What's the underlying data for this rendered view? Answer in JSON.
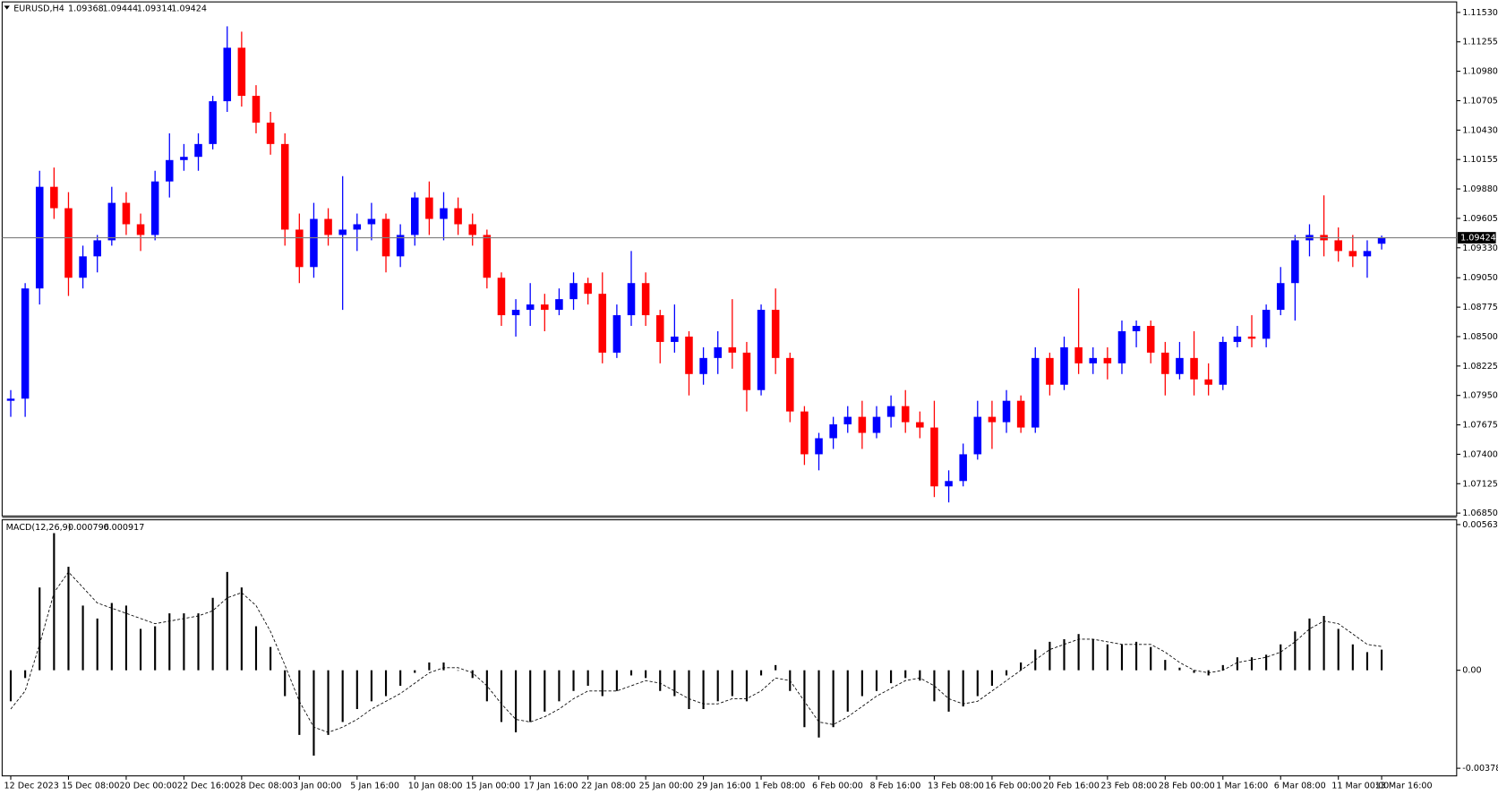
{
  "chart_data": [
    {
      "type": "candlestick",
      "title": "EURUSD,H4",
      "up_color": "#0000ff",
      "down_color": "#ff0000",
      "grid": false,
      "categories": [
        "12 Dec 2023",
        null,
        null,
        null,
        "15 Dec 08:00",
        null,
        null,
        null,
        "20 Dec 00:00",
        null,
        null,
        null,
        "22 Dec 16:00",
        null,
        null,
        null,
        "28 Dec 08:00",
        null,
        null,
        null,
        "3 Jan 00:00",
        null,
        null,
        null,
        "5 Jan 16:00",
        null,
        null,
        null,
        "10 Jan 08:00",
        null,
        null,
        null,
        "15 Jan 00:00",
        null,
        null,
        null,
        "17 Jan 16:00",
        null,
        null,
        null,
        "22 Jan 08:00",
        null,
        null,
        null,
        "25 Jan 00:00",
        null,
        null,
        null,
        "29 Jan 16:00",
        null,
        null,
        null,
        "1 Feb 08:00",
        null,
        null,
        null,
        "6 Feb 00:00",
        null,
        null,
        null,
        "8 Feb 16:00",
        null,
        null,
        null,
        "13 Feb 08:00",
        null,
        null,
        null,
        "16 Feb 00:00",
        null,
        null,
        null,
        "20 Feb 16:00",
        null,
        null,
        null,
        "23 Feb 08:00",
        null,
        null,
        null,
        "28 Feb 00:00",
        null,
        null,
        null,
        "1 Mar 16:00",
        null,
        null,
        null,
        "6 Mar 08:00",
        null,
        null,
        null,
        "11 Mar 00:00",
        null,
        null,
        "13 Mar 16:00"
      ],
      "open": [
        1.079,
        1.0792,
        1.0895,
        1.099,
        1.097,
        1.0905,
        1.0925,
        1.094,
        1.0975,
        1.0955,
        1.0945,
        1.0995,
        1.1015,
        1.1018,
        1.103,
        1.107,
        1.112,
        1.1075,
        1.105,
        1.103,
        1.095,
        1.0915,
        1.096,
        1.0945,
        1.095,
        1.0955,
        1.096,
        1.0925,
        1.0945,
        1.098,
        1.096,
        1.097,
        1.0955,
        1.0945,
        1.0905,
        1.087,
        1.0875,
        1.088,
        1.0875,
        1.0885,
        1.09,
        1.089,
        1.0835,
        1.087,
        1.09,
        1.087,
        1.0845,
        1.085,
        1.0815,
        1.083,
        1.084,
        1.0835,
        1.08,
        1.0875,
        1.083,
        1.078,
        1.074,
        1.0755,
        1.0768,
        1.0775,
        1.076,
        1.0775,
        1.0785,
        1.077,
        1.0765,
        1.071,
        1.0715,
        1.074,
        1.0775,
        1.077,
        1.079,
        1.0765,
        1.083,
        1.0805,
        1.084,
        1.0825,
        1.083,
        1.0825,
        1.0855,
        1.086,
        1.0835,
        1.0815,
        1.083,
        1.081,
        1.0805,
        1.0845,
        1.085,
        1.0848,
        1.0875,
        1.09,
        1.094,
        1.0945,
        1.094,
        1.093,
        1.0925,
        1.09368
      ],
      "high": [
        1.08,
        1.09,
        1.1005,
        1.1008,
        1.0985,
        1.0935,
        1.0945,
        1.099,
        1.0985,
        1.0965,
        1.1005,
        1.104,
        1.103,
        1.104,
        1.1075,
        1.114,
        1.1135,
        1.1085,
        1.106,
        1.104,
        1.0965,
        1.0975,
        1.097,
        1.1,
        1.0965,
        1.0975,
        1.0965,
        1.0955,
        1.0985,
        1.0995,
        1.0985,
        1.098,
        1.0965,
        1.095,
        1.091,
        1.0885,
        1.09,
        1.089,
        1.0895,
        1.091,
        1.0905,
        1.091,
        1.088,
        1.093,
        1.091,
        1.0875,
        1.088,
        1.0855,
        1.084,
        1.0855,
        1.0885,
        1.0845,
        1.088,
        1.0895,
        1.0835,
        1.0785,
        1.076,
        1.0775,
        1.0785,
        1.079,
        1.0785,
        1.0795,
        1.08,
        1.078,
        1.079,
        1.0725,
        1.075,
        1.079,
        1.079,
        1.08,
        1.0795,
        1.084,
        1.0835,
        1.085,
        1.0895,
        1.084,
        1.084,
        1.0865,
        1.0865,
        1.0865,
        1.0845,
        1.0845,
        1.0855,
        1.0825,
        1.085,
        1.086,
        1.087,
        1.088,
        1.0915,
        1.0945,
        1.0955,
        1.0982,
        1.0952,
        1.0945,
        1.094,
        1.09444
      ],
      "low": [
        1.0775,
        1.0775,
        1.088,
        1.096,
        1.0888,
        1.0895,
        1.091,
        1.0935,
        1.0945,
        1.093,
        1.094,
        1.098,
        1.1005,
        1.1005,
        1.1025,
        1.106,
        1.1065,
        1.104,
        1.102,
        1.0935,
        1.09,
        1.0905,
        1.0935,
        1.0875,
        1.093,
        1.094,
        1.091,
        1.0915,
        1.0935,
        1.0945,
        1.094,
        1.0945,
        1.0935,
        1.0895,
        1.086,
        1.085,
        1.086,
        1.0855,
        1.087,
        1.0875,
        1.088,
        1.0825,
        1.083,
        1.086,
        1.086,
        1.0825,
        1.0835,
        1.0795,
        1.0805,
        1.0815,
        1.082,
        1.078,
        1.0795,
        1.0815,
        1.077,
        1.073,
        1.0725,
        1.0745,
        1.076,
        1.0745,
        1.0755,
        1.0765,
        1.076,
        1.0755,
        1.07,
        1.0695,
        1.071,
        1.0735,
        1.0745,
        1.076,
        1.076,
        1.076,
        1.0795,
        1.08,
        1.0815,
        1.0815,
        1.081,
        1.0815,
        1.084,
        1.0825,
        1.0795,
        1.081,
        1.0795,
        1.0795,
        1.08,
        1.084,
        1.084,
        1.084,
        1.087,
        1.0865,
        1.0925,
        1.0925,
        1.092,
        1.0915,
        1.0905,
        1.09314
      ],
      "close": [
        1.0792,
        1.0895,
        1.099,
        1.097,
        1.0905,
        1.0925,
        1.094,
        1.0975,
        1.0955,
        1.0945,
        1.0995,
        1.1015,
        1.1018,
        1.103,
        1.107,
        1.112,
        1.1075,
        1.105,
        1.103,
        1.095,
        1.0915,
        1.096,
        1.0945,
        1.095,
        1.0955,
        1.096,
        1.0925,
        1.0945,
        1.098,
        1.096,
        1.097,
        1.0955,
        1.0945,
        1.0905,
        1.087,
        1.0875,
        1.088,
        1.0875,
        1.0885,
        1.09,
        1.089,
        1.0835,
        1.087,
        1.09,
        1.087,
        1.0845,
        1.085,
        1.0815,
        1.083,
        1.084,
        1.0835,
        1.08,
        1.0875,
        1.083,
        1.078,
        1.074,
        1.0755,
        1.0768,
        1.0775,
        1.076,
        1.0775,
        1.0785,
        1.077,
        1.0765,
        1.071,
        1.0715,
        1.074,
        1.0775,
        1.077,
        1.079,
        1.0765,
        1.083,
        1.0805,
        1.084,
        1.0825,
        1.083,
        1.0825,
        1.0855,
        1.086,
        1.0835,
        1.0815,
        1.083,
        1.081,
        1.0805,
        1.0845,
        1.085,
        1.0848,
        1.0875,
        1.09,
        1.094,
        1.0945,
        1.094,
        1.093,
        1.0925,
        1.093,
        1.09424
      ],
      "ylim": [
        1.0685,
        1.1153
      ],
      "yticks": [
        {
          "value": 1.1153,
          "label": "1.11530"
        },
        1.11255,
        {
          "value": 1.1098,
          "label": "1.10980"
        },
        1.10705,
        {
          "value": 1.1043,
          "label": "1.10430"
        },
        1.10155,
        {
          "value": 1.0988,
          "label": "1.09880"
        },
        1.09605,
        {
          "value": 1.0933,
          "label": "1.09330"
        },
        {
          "value": 1.0905,
          "label": "1.09050"
        },
        1.08775,
        {
          "value": 1.085,
          "label": "1.08500"
        },
        1.08225,
        {
          "value": 1.0795,
          "label": "1.07950"
        },
        1.07675,
        {
          "value": 1.074,
          "label": "1.07400"
        },
        1.07125,
        {
          "value": 1.0685,
          "label": "1.06850"
        }
      ]
    },
    {
      "type": "macd",
      "title": "MACD(12,26,9)",
      "grid": false,
      "series": [
        {
          "name": "MACD",
          "color": "#000000",
          "values": [
            -0.0012,
            -0.0003,
            0.0032,
            0.0053,
            0.004,
            0.0025,
            0.002,
            0.0026,
            0.0025,
            0.0016,
            0.0017,
            0.0022,
            0.0022,
            0.0022,
            0.0028,
            0.0038,
            0.0032,
            0.0017,
            0.0009,
            -0.001,
            -0.0025,
            -0.0033,
            -0.0025,
            -0.002,
            -0.0015,
            -0.0012,
            -0.001,
            -0.0006,
            -0.0001,
            0.0003,
            0.0003,
            0,
            -0.0003,
            -0.0012,
            -0.002,
            -0.0024,
            -0.002,
            -0.0016,
            -0.0012,
            -0.0008,
            -0.0006,
            -0.001,
            -0.0008,
            -0.0002,
            -0.0003,
            -0.0008,
            -0.001,
            -0.0015,
            -0.0015,
            -0.0012,
            -0.001,
            -0.0012,
            -0.0002,
            0.0002,
            -0.0008,
            -0.0022,
            -0.0026,
            -0.0022,
            -0.0016,
            -0.001,
            -0.0008,
            -0.0005,
            -0.0003,
            -0.0004,
            -0.0012,
            -0.0016,
            -0.0014,
            -0.001,
            -0.0006,
            -0.0002,
            0.0003,
            0.0008,
            0.0011,
            0.0012,
            0.0014,
            0.0012,
            0.001,
            0.001,
            0.0011,
            0.0009,
            0.0004,
            0.0001,
            -0.0001,
            -0.0002,
            0.0002,
            0.0005,
            0.0005,
            0.0006,
            0.001,
            0.0015,
            0.002,
            0.0021,
            0.0016,
            0.001,
            0.0007,
            0.000796
          ]
        },
        {
          "name": "Signal",
          "color": "#000000",
          "values": [
            -0.0015,
            -0.0008,
            0.001,
            0.003,
            0.0038,
            0.0032,
            0.0026,
            0.0024,
            0.0022,
            0.002,
            0.0018,
            0.0019,
            0.002,
            0.0021,
            0.0023,
            0.0028,
            0.003,
            0.0025,
            0.0015,
            0.0002,
            -0.0012,
            -0.0022,
            -0.0024,
            -0.0022,
            -0.0019,
            -0.0015,
            -0.0012,
            -0.0009,
            -0.0005,
            -0.0001,
            0.0001,
            0.0001,
            -0.0001,
            -0.0006,
            -0.0013,
            -0.0019,
            -0.002,
            -0.0018,
            -0.0015,
            -0.0011,
            -0.0008,
            -0.0008,
            -0.0008,
            -0.0006,
            -0.0004,
            -0.0005,
            -0.0008,
            -0.0011,
            -0.0013,
            -0.0013,
            -0.0011,
            -0.0011,
            -0.0008,
            -0.0003,
            -0.0004,
            -0.0012,
            -0.002,
            -0.0021,
            -0.0018,
            -0.0014,
            -0.001,
            -0.0007,
            -0.0004,
            -0.0003,
            -0.0006,
            -0.0011,
            -0.0013,
            -0.0012,
            -0.0008,
            -0.0004,
            0,
            0.0004,
            0.0008,
            0.001,
            0.0012,
            0.0012,
            0.0011,
            0.001,
            0.001,
            0.001,
            0.0007,
            0.0003,
            0,
            -0.0001,
            0,
            0.0003,
            0.0004,
            0.0005,
            0.0007,
            0.0011,
            0.0016,
            0.0019,
            0.0018,
            0.0014,
            0.001,
            0.000917
          ]
        }
      ],
      "ylim": [
        -0.003788,
        0.005631
      ],
      "yticks": [
        0.005631,
        {
          "value": 0,
          "label": "0.00"
        },
        -0.003788
      ]
    }
  ]
}
